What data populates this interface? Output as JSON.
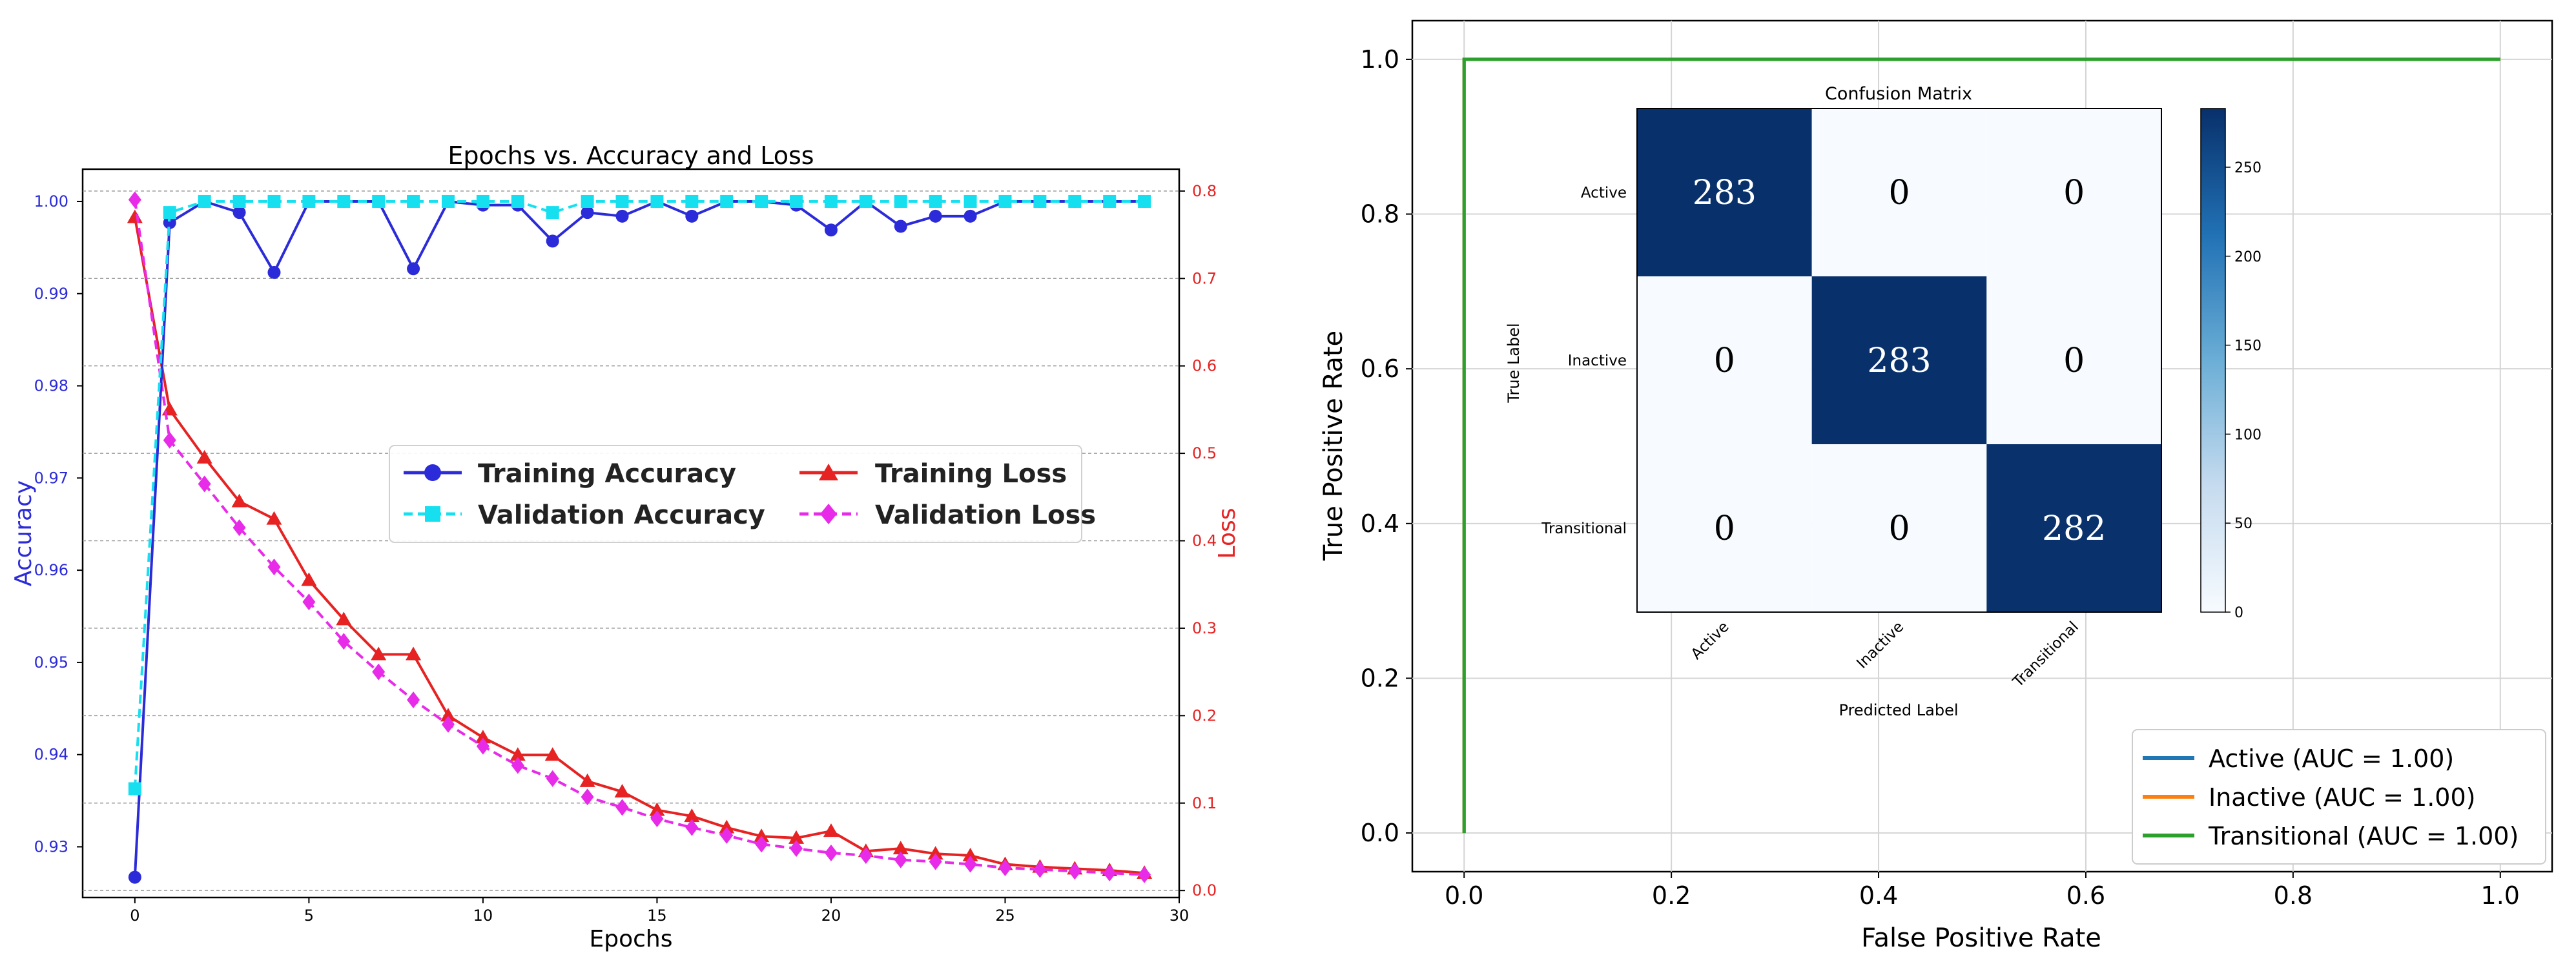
{
  "chart_data": [
    {
      "type": "line",
      "title": "Epochs vs. Accuracy and Loss",
      "xlabel": "Epochs",
      "ylabel": "Accuracy",
      "y2label": "Loss",
      "xlim": [
        -1.5,
        30
      ],
      "ylim": [
        0.9245,
        1.0035
      ],
      "y2lim": [
        -0.008,
        0.825
      ],
      "xticks": [
        0,
        5,
        10,
        15,
        20,
        25,
        30
      ],
      "yticks": [
        0.93,
        0.94,
        0.95,
        0.96,
        0.97,
        0.98,
        0.99,
        1.0
      ],
      "ytick_labels": [
        "0.93",
        "0.94",
        "0.95",
        "0.96",
        "0.97",
        "0.98",
        "0.99",
        "1.00"
      ],
      "y2ticks": [
        0.0,
        0.1,
        0.2,
        0.3,
        0.4,
        0.5,
        0.6,
        0.7,
        0.8
      ],
      "y2tick_labels": [
        "0.0",
        "0.1",
        "0.2",
        "0.3",
        "0.4",
        "0.5",
        "0.6",
        "0.7",
        "0.8"
      ],
      "x": [
        0,
        1,
        2,
        3,
        4,
        5,
        6,
        7,
        8,
        9,
        10,
        11,
        12,
        13,
        14,
        15,
        16,
        17,
        18,
        19,
        20,
        21,
        22,
        23,
        24,
        25,
        26,
        27,
        28,
        29
      ],
      "series": [
        {
          "name": "Training Accuracy",
          "axis": "left",
          "color": "#2b2bd9",
          "marker": "circle",
          "values": [
            0.9267,
            0.9977,
            1.0,
            0.9988,
            0.9923,
            1.0,
            1.0,
            1.0,
            0.9927,
            1.0,
            0.9996,
            0.9996,
            0.9957,
            0.9988,
            0.9984,
            1.0,
            0.9984,
            1.0,
            1.0,
            0.9996,
            0.9969,
            1.0,
            0.9973,
            0.9984,
            0.9984,
            1.0,
            1.0,
            1.0,
            1.0,
            1.0
          ]
        },
        {
          "name": "Validation Accuracy",
          "axis": "left",
          "color": "#16e0f0",
          "marker": "square",
          "values": [
            0.9363,
            0.9988,
            1.0,
            1.0,
            1.0,
            1.0,
            1.0,
            1.0,
            1.0,
            1.0,
            1.0,
            1.0,
            0.9988,
            1.0,
            1.0,
            1.0,
            1.0,
            1.0,
            1.0,
            1.0,
            1.0,
            1.0,
            1.0,
            1.0,
            1.0,
            1.0,
            1.0,
            1.0,
            1.0,
            1.0
          ]
        },
        {
          "name": "Training Loss",
          "axis": "right",
          "color": "#e62222",
          "marker": "triangle",
          "values": [
            0.77,
            0.55,
            0.495,
            0.445,
            0.425,
            0.355,
            0.31,
            0.27,
            0.27,
            0.2,
            0.175,
            0.155,
            0.155,
            0.125,
            0.113,
            0.092,
            0.085,
            0.072,
            0.062,
            0.06,
            0.068,
            0.045,
            0.048,
            0.042,
            0.04,
            0.03,
            0.027,
            0.025,
            0.023,
            0.02
          ]
        },
        {
          "name": "Validation Loss",
          "axis": "right",
          "color": "#e72be8",
          "marker": "diamond",
          "values": [
            0.79,
            0.515,
            0.465,
            0.415,
            0.37,
            0.33,
            0.285,
            0.25,
            0.218,
            0.19,
            0.165,
            0.143,
            0.128,
            0.107,
            0.095,
            0.082,
            0.072,
            0.063,
            0.053,
            0.048,
            0.043,
            0.04,
            0.035,
            0.033,
            0.03,
            0.026,
            0.024,
            0.022,
            0.02,
            0.018
          ]
        }
      ]
    },
    {
      "type": "line",
      "title": "",
      "xlabel": "False Positive Rate",
      "ylabel": "True Positive Rate",
      "xlim": [
        -0.05,
        1.05
      ],
      "ylim": [
        -0.05,
        1.05
      ],
      "xticks": [
        0.0,
        0.2,
        0.4,
        0.6,
        0.8,
        1.0
      ],
      "xtick_labels": [
        "0.0",
        "0.2",
        "0.4",
        "0.6",
        "0.8",
        "1.0"
      ],
      "yticks": [
        0.0,
        0.2,
        0.4,
        0.6,
        0.8,
        1.0
      ],
      "ytick_labels": [
        "0.0",
        "0.2",
        "0.4",
        "0.6",
        "0.8",
        "1.0"
      ],
      "grid": true,
      "legend_position": "bottom-right",
      "series": [
        {
          "name": "Active (AUC = 1.00)",
          "color": "#1f77b4",
          "x": [
            0,
            0,
            1
          ],
          "y": [
            0,
            1,
            1
          ]
        },
        {
          "name": "Inactive (AUC = 1.00)",
          "color": "#ff7f0e",
          "x": [
            0,
            0,
            1
          ],
          "y": [
            0,
            1,
            1
          ]
        },
        {
          "name": "Transitional (AUC = 1.00)",
          "color": "#2ca02c",
          "x": [
            0,
            0,
            1
          ],
          "y": [
            0,
            1,
            1
          ]
        }
      ]
    },
    {
      "type": "heatmap",
      "title": "Confusion Matrix",
      "xlabel": "Predicted Label",
      "ylabel": "True Label",
      "rows": [
        "Active",
        "Inactive",
        "Transitional"
      ],
      "cols": [
        "Active",
        "Inactive",
        "Transitional"
      ],
      "values": [
        [
          283,
          0,
          0
        ],
        [
          0,
          283,
          0
        ],
        [
          0,
          0,
          282
        ]
      ],
      "colorbar": {
        "min": 0,
        "max": 283,
        "ticks": [
          0,
          50,
          100,
          150,
          200,
          250
        ],
        "tick_labels": [
          "0",
          "50",
          "100",
          "150",
          "200",
          "250"
        ]
      },
      "colors": {
        "high": "#08306b",
        "low": "#f7fbff"
      }
    }
  ]
}
